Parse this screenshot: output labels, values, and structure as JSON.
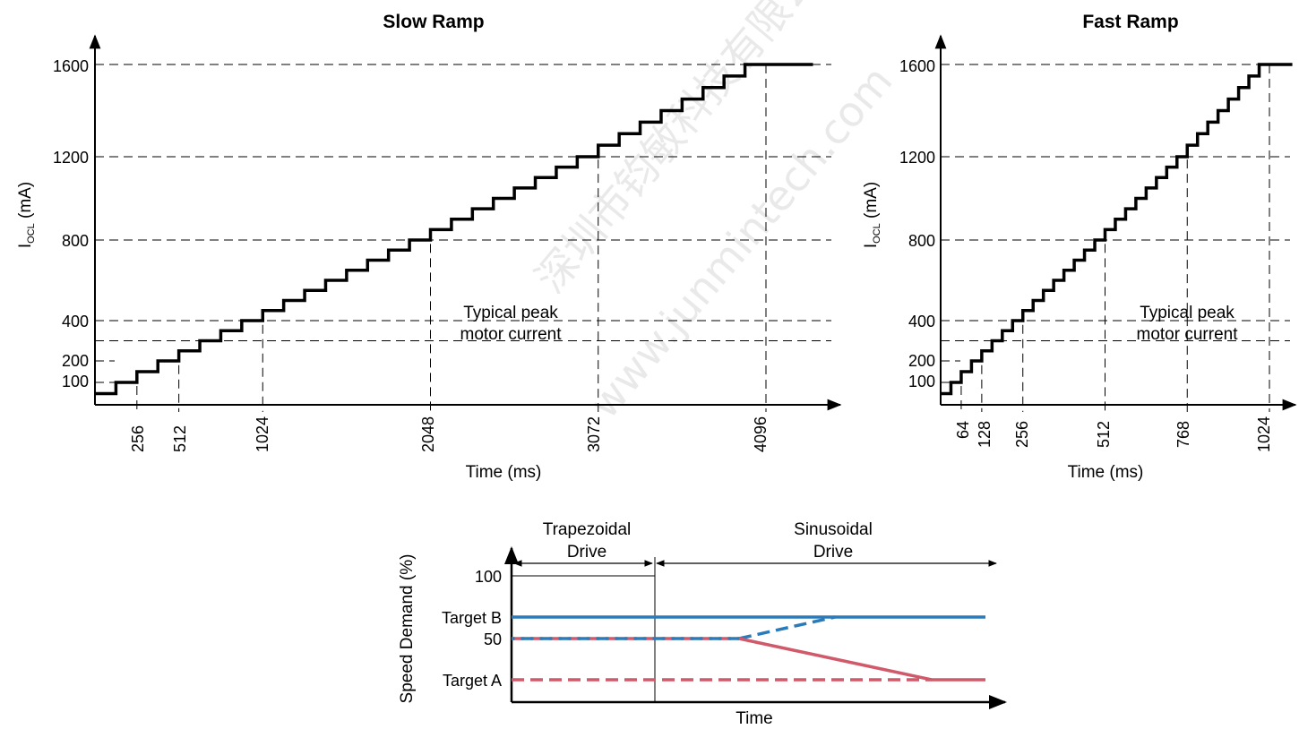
{
  "chart_data": [
    {
      "type": "line",
      "title": "Slow Ramp",
      "xlabel": "Time (ms)",
      "ylabel_main": "I",
      "ylabel_sub": "OCL",
      "ylabel_unit": " (mA)",
      "x_ticks": [
        "256",
        "512",
        "1024",
        "2048",
        "3072",
        "4096"
      ],
      "y_ticks": [
        "100",
        "200",
        "400",
        "800",
        "1200",
        "1600"
      ],
      "annotation": [
        "Typical peak",
        "motor current"
      ],
      "step_ms": 128,
      "step_ma": 50,
      "start_ma": 50,
      "end_ma": 1600,
      "xlim": [
        0,
        4450
      ],
      "series": [
        {
          "values_description": "staircase current limit: +50 mA every 128 ms from 50 mA to 1600 mA"
        }
      ]
    },
    {
      "type": "line",
      "title": "Fast Ramp",
      "xlabel": "Time (ms)",
      "ylabel_main": "I",
      "ylabel_sub": "OCL",
      "ylabel_unit": " (mA)",
      "x_ticks": [
        "64",
        "128",
        "256",
        "512",
        "768",
        "1024"
      ],
      "y_ticks": [
        "100",
        "200",
        "400",
        "800",
        "1200",
        "1600"
      ],
      "annotation": [
        "Typical peak",
        "motor current"
      ],
      "step_ms": 32,
      "step_ma": 50,
      "start_ma": 50,
      "end_ma": 1600,
      "xlim": [
        0,
        1112
      ]
    },
    {
      "type": "line",
      "xlabel": "Time",
      "ylabel": "Speed Demand (%)",
      "y_ticks": [
        "100",
        "Target B",
        "50",
        "Target A"
      ],
      "phases": [
        [
          "Trapezoidal",
          "Drive"
        ],
        [
          "Sinusoidal",
          "Drive"
        ]
      ],
      "colors": {
        "blue": "#2b7bba",
        "red": "#d0596a"
      }
    }
  ],
  "watermark": [
    "深圳市钧敏科技有限公司",
    "www.junmintech.com"
  ]
}
